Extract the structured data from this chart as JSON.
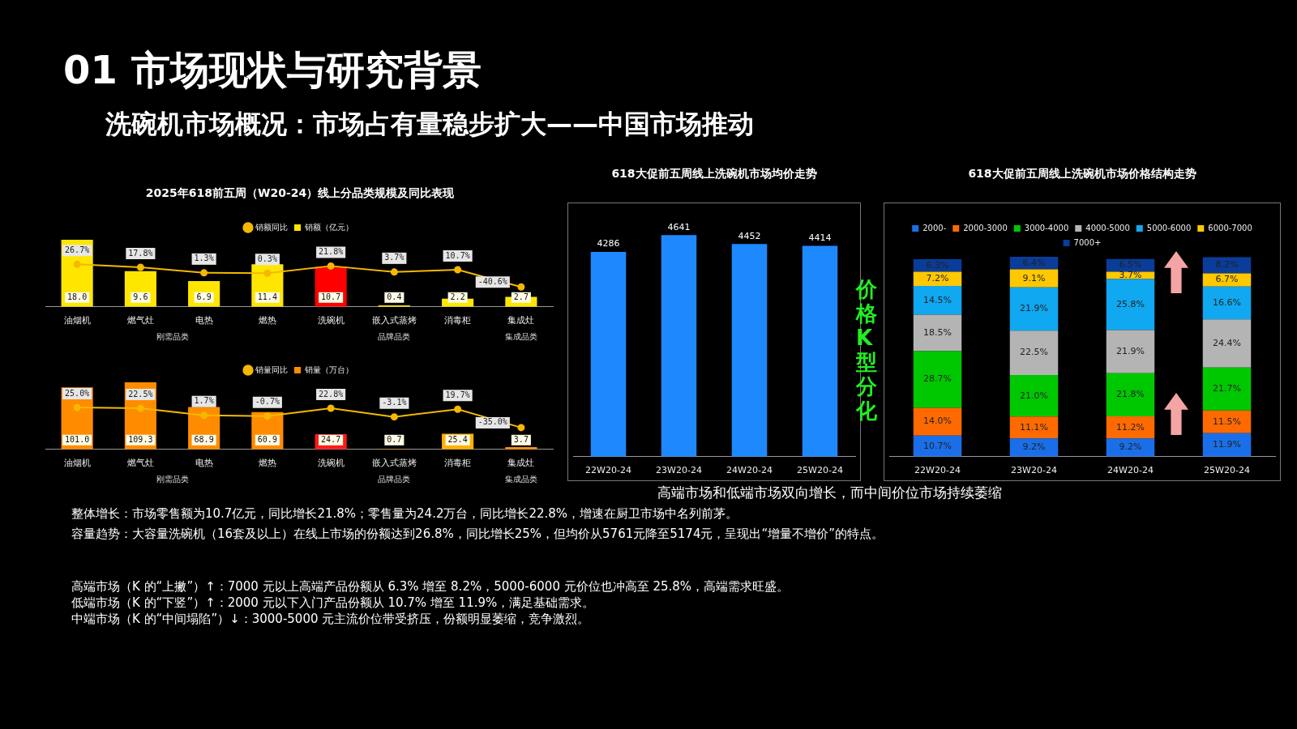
{
  "chart_data": [
    {
      "type": "other",
      "title": "01 市场现状与研究背景",
      "subtitle": "洗碗机市场概况：市场占有量稳步扩大——中国市场推动",
      "annotations": [
        "高端市场和低端市场双向增长，而中间价位市场持续萎缩",
        "整体增长：市场零售额为10.7亿元，同比增长21.8%；零售量为24.2万台，同比增长22.8%，增速在厨卫市场中名列前茅。",
        "容量趋势：大容量洗碗机（16套及以上）在线上市场的份额达到26.8%，同比增长25%，但均价从5761元降至5174元，呈现出“增量不增价”的特点。",
        "高端市场（K 的“上撇”）↑：7000 元以上高端产品份额从 6.3% 增至 8.2%，5000-6000 元价位也冲高至 25.8%，高端需求旺盛。",
        "低端市场（K 的“下竖”）↑：2000 元以下入门产品份额从 10.7% 增至 11.9%，满足基础需求。",
        "中端市场（K 的“中间塌陷”）↓：3000-5000 元主流价位带受挤压，份额明显萎缩，竞争激烈。"
      ]
    },
    {
      "type": "bar",
      "title": "2025年618前五周（W20-24）线上分品类规模及同比表现",
      "categories": [
        "油烟机",
        "燃气灶",
        "电热",
        "燃热",
        "洗碗机",
        "嵌入式蒸烤",
        "消毒柜",
        "集成灶"
      ],
      "legend": "top",
      "marker": "circle",
      "tick_labels": "x",
      "annotations": [
        "刚需品类",
        "品牌品类",
        "集成品类"
      ],
      "series": [
        {
          "name": "销额（亿元）",
          "type": "bar",
          "color": "#ffe600",
          "colors": [
            "#ffe600",
            "#ffe600",
            "#ffe600",
            "#ffe600",
            "#ff0000",
            "#ffe600",
            "#ffe600",
            "#ffe600"
          ],
          "values": [
            18.0,
            9.6,
            6.9,
            11.4,
            10.7,
            0.4,
            2.2,
            2.7
          ],
          "value_labels": [
            "18.0",
            "9.6",
            "6.9",
            "11.4",
            "10.7",
            "0.4",
            "2.2",
            "2.7"
          ]
        },
        {
          "name": "销额同比",
          "type": "line",
          "axis": "y2",
          "color": "#f5b800",
          "values": [
            26.7,
            17.8,
            1.3,
            0.3,
            21.8,
            3.7,
            10.7,
            -40.6
          ],
          "value_labels": [
            "26.7%",
            "17.8%",
            "1.3%",
            "0.3%",
            "21.8%",
            "3.7%",
            "10.7%",
            "-40.6%"
          ]
        }
      ]
    },
    {
      "type": "bar",
      "categories": [
        "油烟机",
        "燃气灶",
        "电热",
        "燃热",
        "洗碗机",
        "嵌入式蒸烤",
        "消毒柜",
        "集成灶"
      ],
      "legend": "top",
      "marker": "circle",
      "tick_labels": "x",
      "annotations": [
        "刚需品类",
        "品牌品类",
        "集成品类"
      ],
      "series": [
        {
          "name": "销量（万台）",
          "type": "bar",
          "color": "#ff8c00",
          "colors": [
            "#ff8c00",
            "#ff8c00",
            "#ff8c00",
            "#ff8c00",
            "#ff1a1a",
            "#ff8c00",
            "#ffb000",
            "#ff8c00"
          ],
          "values": [
            101.0,
            109.3,
            68.9,
            60.9,
            24.7,
            0.7,
            25.4,
            3.7
          ],
          "value_labels": [
            "101.0",
            "109.3",
            "68.9",
            "60.9",
            "24.7",
            "0.7",
            "25.4",
            "3.7"
          ]
        },
        {
          "name": "销量同比",
          "type": "line",
          "axis": "y2",
          "color": "#f5b800",
          "values": [
            25.0,
            22.5,
            1.7,
            -0.7,
            22.8,
            -3.1,
            19.7,
            -35.0
          ],
          "value_labels": [
            "25.0%",
            "22.5%",
            "1.7%",
            "-0.7%",
            "22.8%",
            "-3.1%",
            "19.7%",
            "-35.0%"
          ]
        }
      ]
    },
    {
      "type": "bar",
      "title": "618大促前五周线上洗碗机市场均价走势",
      "categories": [
        "22W20-24",
        "23W20-24",
        "24W20-24",
        "25W20-24"
      ],
      "tick_labels": "x",
      "series": [
        {
          "color": "#1e88ff",
          "values": [
            4286,
            4641,
            4452,
            4414
          ],
          "value_labels": [
            "4286",
            "4641",
            "4452",
            "4414"
          ]
        }
      ]
    },
    {
      "type": "bar",
      "title": "618大促前五周线上洗碗机市场价格结构走势",
      "categories": [
        "22W20-24",
        "23W20-24",
        "24W20-24",
        "25W20-24"
      ],
      "stacked": true,
      "ylim": [
        0,
        102
      ],
      "tick_labels": "x",
      "legend": "top",
      "annotations": [
        "价格K型分化"
      ],
      "series": [
        {
          "name": "2000-",
          "color": "#1a6fe8",
          "values": [
            10.7,
            9.2,
            9.2,
            11.9
          ],
          "value_labels": [
            "10.7%",
            "9.2%",
            "9.2%",
            "11.9%"
          ]
        },
        {
          "name": "2000-3000",
          "color": "#ff6a00",
          "values": [
            14.0,
            11.1,
            11.2,
            11.5
          ],
          "value_labels": [
            "14.0%",
            "11.1%",
            "11.2%",
            "11.5%"
          ]
        },
        {
          "name": "3000-4000",
          "color": "#00c800",
          "values": [
            28.7,
            21.0,
            21.8,
            21.7
          ],
          "value_labels": [
            "28.7%",
            "21.0%",
            "21.8%",
            "21.7%"
          ]
        },
        {
          "name": "4000-5000",
          "color": "#b4b4b4",
          "values": [
            18.5,
            22.5,
            21.9,
            24.4
          ],
          "value_labels": [
            "18.5%",
            "22.5%",
            "21.9%",
            "24.4%"
          ]
        },
        {
          "name": "5000-6000",
          "color": "#10a8f0",
          "values": [
            14.5,
            21.9,
            25.8,
            16.6
          ],
          "value_labels": [
            "14.5%",
            "21.9%",
            "25.8%",
            "16.6%"
          ]
        },
        {
          "name": "6000-7000",
          "color": "#ffc800",
          "values": [
            7.2,
            9.1,
            3.7,
            6.7
          ],
          "value_labels": [
            "7.2%",
            "9.1%",
            "3.7%",
            "6.7%"
          ]
        },
        {
          "name": "7000+",
          "color": "#0a3c9a",
          "values": [
            6.3,
            6.4,
            6.5,
            8.2
          ],
          "value_labels": [
            "6.3%",
            "6.4%",
            "6.5%",
            "8.2%"
          ]
        }
      ]
    }
  ]
}
